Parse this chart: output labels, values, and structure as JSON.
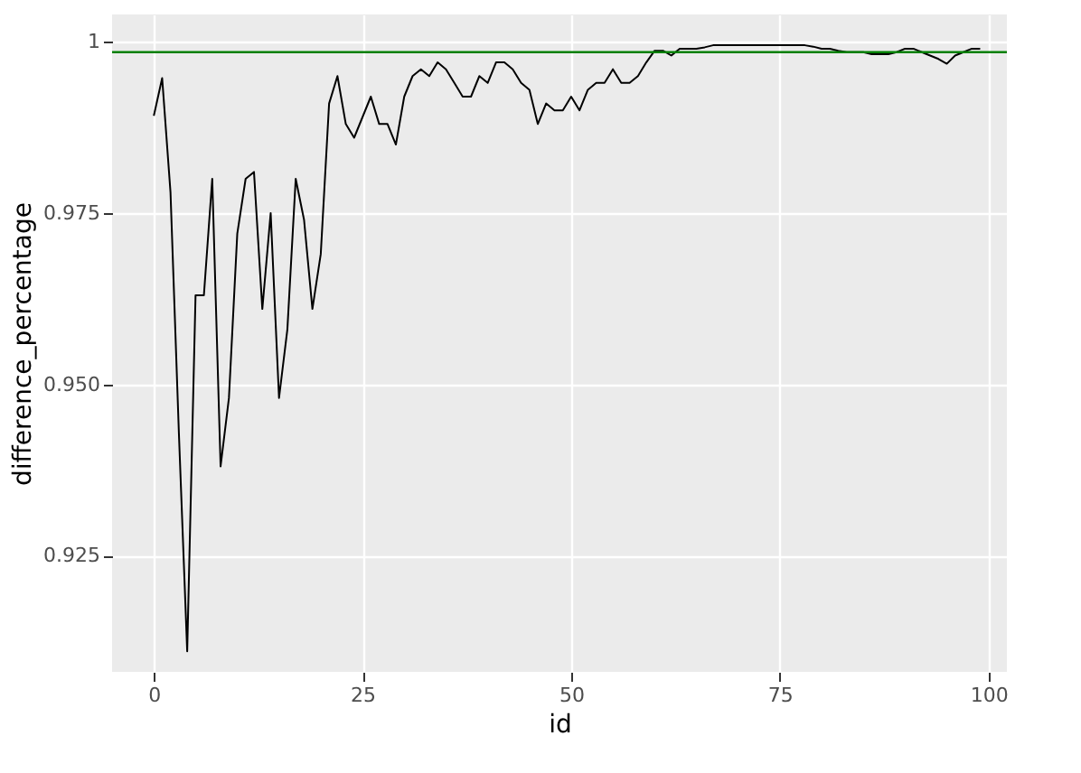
{
  "chart_data": {
    "type": "line",
    "xlabel": "id",
    "ylabel": "difference_percentage",
    "x": [
      0,
      1,
      2,
      3,
      4,
      5,
      6,
      7,
      8,
      9,
      10,
      11,
      12,
      13,
      14,
      15,
      16,
      17,
      18,
      19,
      20,
      21,
      22,
      23,
      24,
      25,
      26,
      27,
      28,
      29,
      30,
      31,
      32,
      33,
      34,
      35,
      36,
      37,
      38,
      39,
      40,
      41,
      42,
      43,
      44,
      45,
      46,
      47,
      48,
      49,
      50,
      51,
      52,
      53,
      54,
      55,
      56,
      57,
      58,
      59,
      60,
      61,
      62,
      63,
      64,
      65,
      66,
      67,
      68,
      69,
      70,
      71,
      72,
      73,
      74,
      75,
      76,
      77,
      78,
      79,
      80,
      81,
      82,
      83,
      84,
      85,
      86,
      87,
      88,
      89,
      90,
      91,
      92,
      93,
      94,
      95,
      96,
      97,
      98,
      99
    ],
    "series": [
      {
        "color": "#000000",
        "values": [
          0.9892,
          0.9947,
          0.978,
          0.943,
          0.911,
          0.963,
          0.963,
          0.98,
          0.938,
          0.948,
          0.972,
          0.98,
          0.981,
          0.961,
          0.975,
          0.948,
          0.958,
          0.98,
          0.974,
          0.961,
          0.969,
          0.991,
          0.995,
          0.988,
          0.986,
          0.989,
          0.992,
          0.988,
          0.988,
          0.985,
          0.992,
          0.995,
          0.996,
          0.995,
          0.997,
          0.996,
          0.994,
          0.992,
          0.992,
          0.995,
          0.994,
          0.997,
          0.997,
          0.996,
          0.994,
          0.993,
          0.988,
          0.991,
          0.99,
          0.99,
          0.992,
          0.99,
          0.993,
          0.994,
          0.994,
          0.996,
          0.994,
          0.994,
          0.995,
          0.997,
          0.9987,
          0.9987,
          0.998,
          0.999,
          0.999,
          0.999,
          0.9992,
          0.9995,
          0.9995,
          0.9995,
          0.9995,
          0.9995,
          0.9995,
          0.9995,
          0.9995,
          0.9995,
          0.9995,
          0.9995,
          0.9995,
          0.9993,
          0.999,
          0.999,
          0.9987,
          0.9985,
          0.9985,
          0.9985,
          0.9982,
          0.9982,
          0.9982,
          0.9985,
          0.999,
          0.999,
          0.9985,
          0.998,
          0.9975,
          0.9968,
          0.998,
          0.9985,
          0.999,
          0.999
        ]
      }
    ],
    "xlim": [
      -5,
      102.2
    ],
    "ylim": [
      0.908,
      1.004
    ],
    "xticks": [
      0,
      25,
      50,
      75,
      100
    ],
    "yticks": [
      {
        "value": 0.925,
        "label": "0.925"
      },
      {
        "value": 0.95,
        "label": "0.950"
      },
      {
        "value": 0.975,
        "label": "0.975"
      },
      {
        "value": 1,
        "label": "1"
      }
    ],
    "ref_lines": [
      {
        "axis": "y",
        "value": 0.9985,
        "color": "#008000"
      }
    ],
    "grid": true,
    "marker": "none",
    "line_style": "solid"
  }
}
